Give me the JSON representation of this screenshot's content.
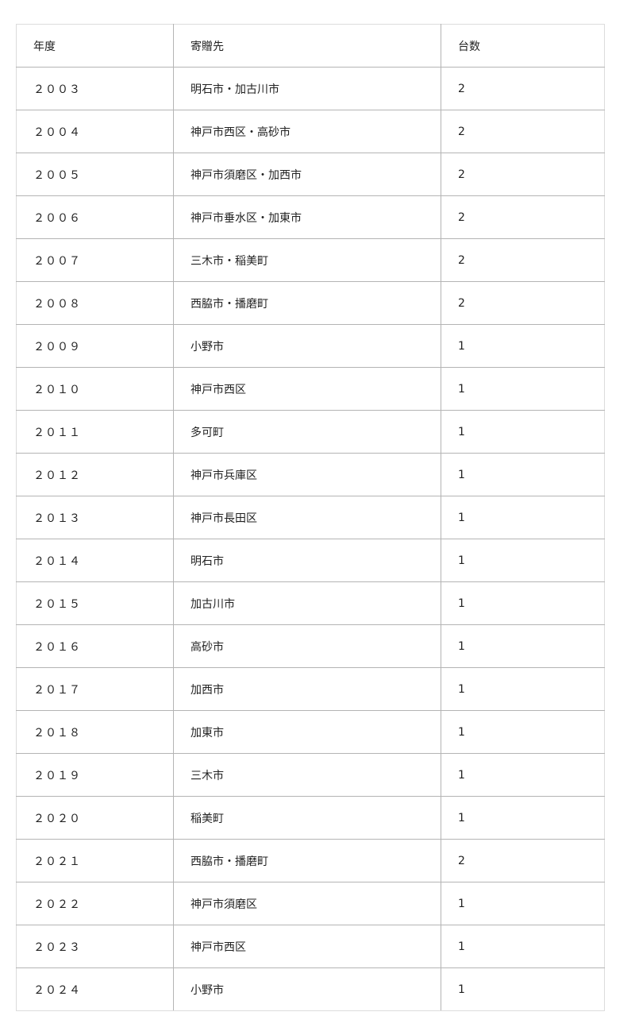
{
  "table": {
    "headers": [
      "年度",
      "寄贈先",
      "台数"
    ],
    "rows": [
      {
        "year": "２００３",
        "recipient": "明石市・加古川市",
        "count": "2"
      },
      {
        "year": "２００４",
        "recipient": "神戸市西区・高砂市",
        "count": "2"
      },
      {
        "year": "２００５",
        "recipient": "神戸市須磨区・加西市",
        "count": "2"
      },
      {
        "year": "２００６",
        "recipient": "神戸市垂水区・加東市",
        "count": "2"
      },
      {
        "year": "２００７",
        "recipient": "三木市・稲美町",
        "count": "2"
      },
      {
        "year": "２００８",
        "recipient": "西脇市・播磨町",
        "count": "2"
      },
      {
        "year": "２００９",
        "recipient": "小野市",
        "count": "1"
      },
      {
        "year": "２０１０",
        "recipient": "神戸市西区",
        "count": "1"
      },
      {
        "year": "２０１１",
        "recipient": "多可町",
        "count": "1"
      },
      {
        "year": "２０１２",
        "recipient": "神戸市兵庫区",
        "count": "1"
      },
      {
        "year": "２０１３",
        "recipient": "神戸市長田区",
        "count": "1"
      },
      {
        "year": "２０１４",
        "recipient": "明石市",
        "count": "1"
      },
      {
        "year": "２０１５",
        "recipient": "加古川市",
        "count": "1"
      },
      {
        "year": "２０１６",
        "recipient": "高砂市",
        "count": "1"
      },
      {
        "year": "２０１７",
        "recipient": "加西市",
        "count": "1"
      },
      {
        "year": "２０１８",
        "recipient": "加東市",
        "count": "1"
      },
      {
        "year": "２０１９",
        "recipient": "三木市",
        "count": "1"
      },
      {
        "year": "２０２０",
        "recipient": "稲美町",
        "count": "1"
      },
      {
        "year": "２０２１",
        "recipient": "西脇市・播磨町",
        "count": "2"
      },
      {
        "year": "２０２２",
        "recipient": "神戸市須磨区",
        "count": "1"
      },
      {
        "year": "２０２３",
        "recipient": "神戸市西区",
        "count": "1"
      },
      {
        "year": "２０２４",
        "recipient": "小野市",
        "count": "1"
      }
    ]
  }
}
